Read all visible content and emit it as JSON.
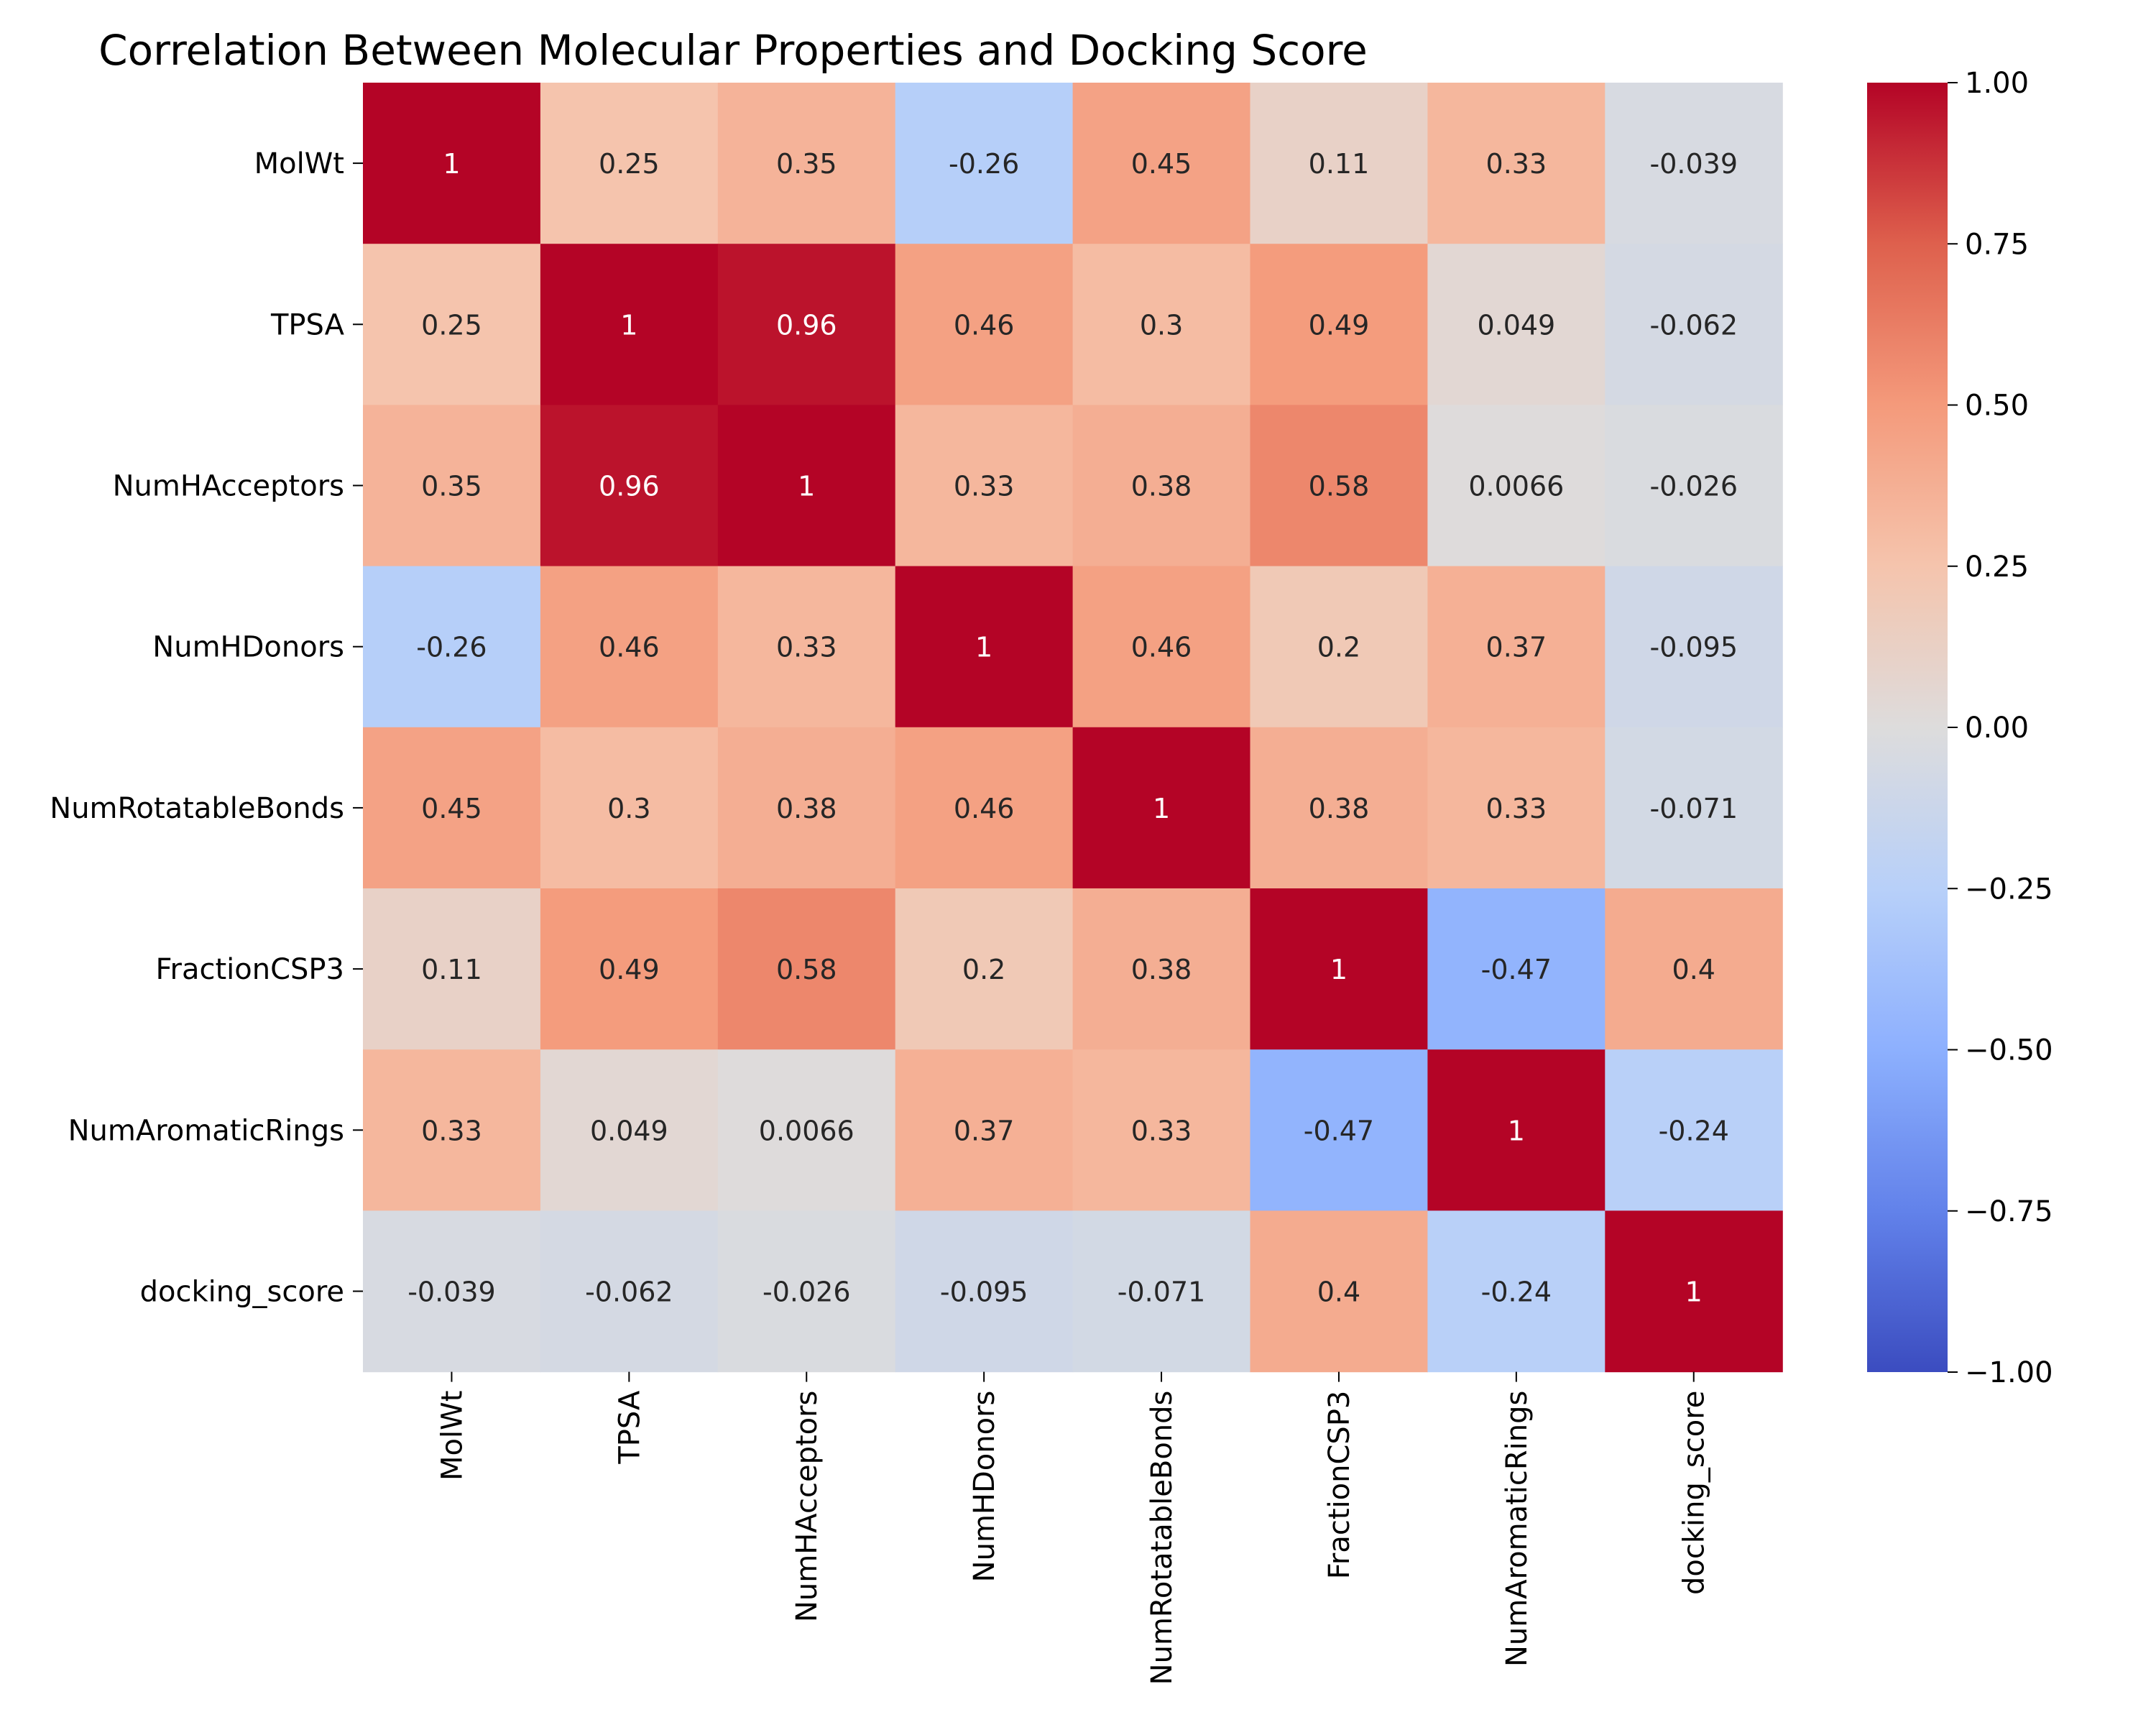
{
  "chart_data": {
    "type": "heatmap",
    "title": "Correlation Between Molecular Properties and Docking Score",
    "row_labels": [
      "MolWt",
      "TPSA",
      "NumHAcceptors",
      "NumHDonors",
      "NumRotatableBonds",
      "FractionCSP3",
      "NumAromaticRings",
      "docking_score"
    ],
    "col_labels": [
      "MolWt",
      "TPSA",
      "NumHAcceptors",
      "NumHDonors",
      "NumRotatableBonds",
      "FractionCSP3",
      "NumAromaticRings",
      "docking_score"
    ],
    "values": [
      [
        1,
        0.25,
        0.35,
        -0.26,
        0.45,
        0.11,
        0.33,
        -0.039
      ],
      [
        0.25,
        1,
        0.96,
        0.46,
        0.3,
        0.49,
        0.049,
        -0.062
      ],
      [
        0.35,
        0.96,
        1,
        0.33,
        0.38,
        0.58,
        0.0066,
        -0.026
      ],
      [
        -0.26,
        0.46,
        0.33,
        1,
        0.46,
        0.2,
        0.37,
        -0.095
      ],
      [
        0.45,
        0.3,
        0.38,
        0.46,
        1,
        0.38,
        0.33,
        -0.071
      ],
      [
        0.11,
        0.49,
        0.58,
        0.2,
        0.38,
        1,
        -0.47,
        0.4
      ],
      [
        0.33,
        0.049,
        0.0066,
        0.37,
        0.33,
        -0.47,
        1,
        -0.24
      ],
      [
        -0.039,
        -0.062,
        -0.026,
        -0.095,
        -0.071,
        0.4,
        -0.24,
        1
      ]
    ],
    "value_labels": [
      [
        "1",
        "0.25",
        "0.35",
        "-0.26",
        "0.45",
        "0.11",
        "0.33",
        "-0.039"
      ],
      [
        "0.25",
        "1",
        "0.96",
        "0.46",
        "0.3",
        "0.49",
        "0.049",
        "-0.062"
      ],
      [
        "0.35",
        "0.96",
        "1",
        "0.33",
        "0.38",
        "0.58",
        "0.0066",
        "-0.026"
      ],
      [
        "-0.26",
        "0.46",
        "0.33",
        "1",
        "0.46",
        "0.2",
        "0.37",
        "-0.095"
      ],
      [
        "0.45",
        "0.3",
        "0.38",
        "0.46",
        "1",
        "0.38",
        "0.33",
        "-0.071"
      ],
      [
        "0.11",
        "0.49",
        "0.58",
        "0.2",
        "0.38",
        "1",
        "-0.47",
        "0.4"
      ],
      [
        "0.33",
        "0.049",
        "0.0066",
        "0.37",
        "0.33",
        "-0.47",
        "1",
        "-0.24"
      ],
      [
        "-0.039",
        "-0.062",
        "-0.026",
        "-0.095",
        "-0.071",
        "0.4",
        "-0.24",
        "1"
      ]
    ],
    "colormap": "coolwarm",
    "vmin": -1,
    "vmax": 1,
    "colorbar_ticks": [
      1.0,
      0.75,
      0.5,
      0.25,
      0.0,
      -0.25,
      -0.5,
      -0.75,
      -1.0
    ],
    "colorbar_tick_labels": [
      "1.00",
      "0.75",
      "0.50",
      "0.25",
      "0.00",
      "−0.25",
      "−0.50",
      "−0.75",
      "−1.00"
    ],
    "colorbar_position": "right",
    "grid": false
  }
}
